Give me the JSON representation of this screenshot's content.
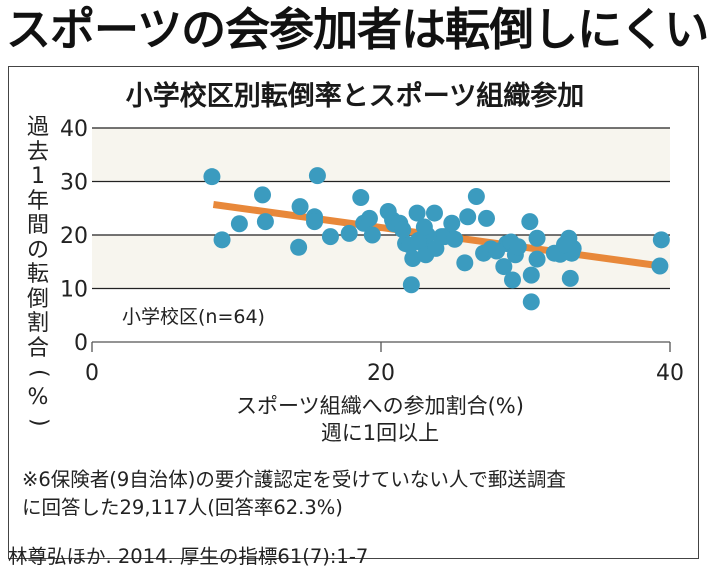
{
  "headline": "スポーツの会参加者は転倒しにくい",
  "chart_data": {
    "type": "scatter",
    "title": "小学校区別転倒率とスポーツ組織参加",
    "xlabel": "スポーツ組織への参加割合(%)",
    "xlabel_sub": "週に1回以上",
    "ylabel": "過去1年間の転倒割合(%)",
    "xlim": [
      0,
      40
    ],
    "ylim": [
      0,
      40
    ],
    "xticks": [
      "0",
      "20",
      "40"
    ],
    "yticks": [
      "0",
      "10",
      "20",
      "30",
      "40"
    ],
    "grid": true,
    "annotation": "小学校区(n=64)",
    "point_color": "#3b9bbf",
    "trend_color": "#e8883a",
    "band_color": "#f7f5ee",
    "trendline": {
      "x": [
        8.4,
        39.4
      ],
      "y": [
        25.7,
        14.2
      ]
    },
    "points": [
      [
        8.3,
        30.9
      ],
      [
        9.0,
        19.1
      ],
      [
        10.2,
        22.1
      ],
      [
        11.8,
        27.5
      ],
      [
        12.0,
        22.5
      ],
      [
        14.3,
        17.7
      ],
      [
        14.4,
        25.3
      ],
      [
        15.4,
        23.4
      ],
      [
        15.4,
        22.5
      ],
      [
        15.6,
        31.1
      ],
      [
        16.5,
        19.7
      ],
      [
        17.8,
        20.3
      ],
      [
        18.6,
        27.0
      ],
      [
        18.8,
        22.2
      ],
      [
        19.2,
        23.1
      ],
      [
        19.4,
        20.0
      ],
      [
        20.5,
        24.4
      ],
      [
        20.8,
        22.8
      ],
      [
        20.9,
        22.1
      ],
      [
        21.3,
        22.2
      ],
      [
        21.7,
        18.4
      ],
      [
        22.0,
        18.1
      ],
      [
        22.1,
        10.7
      ],
      [
        22.2,
        15.6
      ],
      [
        22.5,
        24.1
      ],
      [
        22.9,
        18.4
      ],
      [
        23.1,
        16.3
      ],
      [
        23.2,
        20.0
      ],
      [
        23.7,
        24.1
      ],
      [
        23.8,
        17.5
      ],
      [
        24.2,
        19.7
      ],
      [
        24.4,
        19.7
      ],
      [
        24.9,
        22.2
      ],
      [
        25.1,
        19.2
      ],
      [
        25.8,
        14.8
      ],
      [
        26.0,
        23.4
      ],
      [
        26.6,
        27.2
      ],
      [
        27.1,
        16.6
      ],
      [
        27.3,
        23.1
      ],
      [
        27.6,
        17.4
      ],
      [
        28.5,
        14.1
      ],
      [
        28.7,
        18.4
      ],
      [
        29.0,
        18.7
      ],
      [
        29.1,
        11.6
      ],
      [
        29.3,
        16.3
      ],
      [
        30.3,
        22.5
      ],
      [
        30.4,
        7.5
      ],
      [
        30.4,
        12.5
      ],
      [
        30.8,
        19.4
      ],
      [
        30.8,
        15.5
      ],
      [
        32.0,
        16.6
      ],
      [
        32.4,
        16.4
      ],
      [
        33.0,
        19.4
      ],
      [
        33.1,
        11.9
      ],
      [
        33.2,
        16.6
      ],
      [
        33.3,
        17.5
      ],
      [
        39.4,
        19.1
      ],
      [
        39.3,
        14.2
      ],
      [
        22.6,
        19.0
      ],
      [
        23.0,
        21.5
      ],
      [
        28.0,
        17.0
      ],
      [
        29.5,
        17.8
      ],
      [
        21.5,
        21.0
      ],
      [
        32.7,
        18.2
      ]
    ]
  },
  "note": {
    "line1": "※6保険者(9自治体)の要介護認定を受けていない人で郵送調査",
    "line2": "に回答した29,117人(回答率62.3%)"
  },
  "source": "林尊弘ほか. 2014. 厚生の指標61(7):1-7"
}
